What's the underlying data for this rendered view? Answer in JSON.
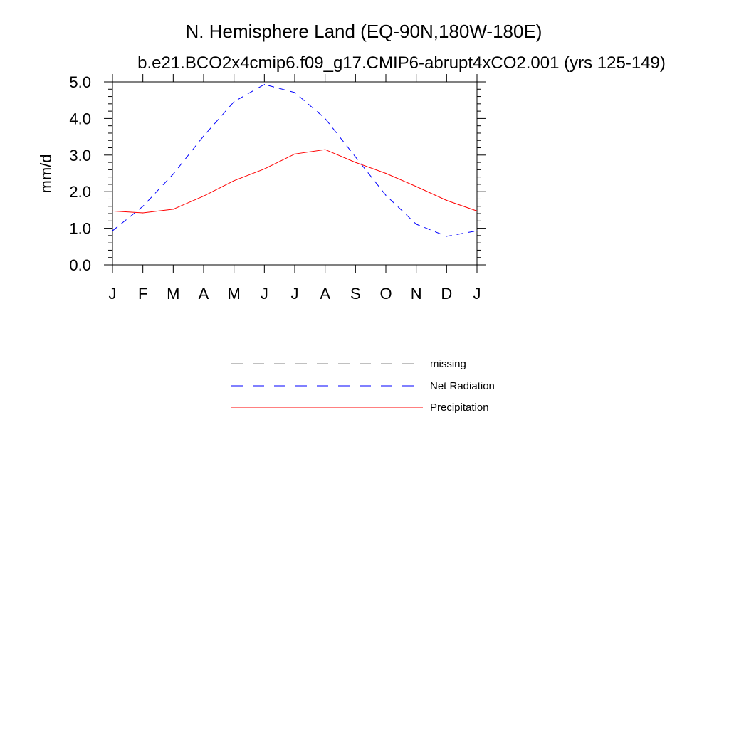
{
  "chart_data": {
    "type": "line",
    "title": "N. Hemisphere Land (EQ-90N,180W-180E)",
    "subtitle": "b.e21.BCO2x4cmip6.f09_g17.CMIP6-abrupt4xCO2.001 (yrs 125-149)",
    "xlabel": "",
    "ylabel": "mm/d",
    "ylim": [
      0,
      5
    ],
    "yticks": [
      "0.0",
      "1.0",
      "2.0",
      "3.0",
      "4.0",
      "5.0"
    ],
    "yticks_values": [
      0,
      1,
      2,
      3,
      4,
      5
    ],
    "categories": [
      "J",
      "F",
      "M",
      "A",
      "M",
      "J",
      "J",
      "A",
      "S",
      "O",
      "N",
      "D",
      "J"
    ],
    "series": [
      {
        "name": "Net Radiation",
        "color": "#0000ff",
        "dash": "dashed",
        "values": [
          0.93,
          1.6,
          2.48,
          3.52,
          4.46,
          4.93,
          4.71,
          4.0,
          2.95,
          1.9,
          1.11,
          0.78,
          0.93
        ]
      },
      {
        "name": "Precipitation",
        "color": "#ff0000",
        "dash": "solid",
        "values": [
          1.47,
          1.42,
          1.52,
          1.88,
          2.3,
          2.62,
          3.03,
          3.15,
          2.8,
          2.5,
          2.14,
          1.76,
          1.47
        ]
      }
    ],
    "legend": [
      {
        "label": "missing",
        "color": "#808080",
        "dash": "dashed"
      },
      {
        "label": "Net Radiation",
        "color": "#0000ff",
        "dash": "dashed"
      },
      {
        "label": "Precipitation",
        "color": "#ff0000",
        "dash": "solid"
      }
    ],
    "legend_position": "below"
  }
}
